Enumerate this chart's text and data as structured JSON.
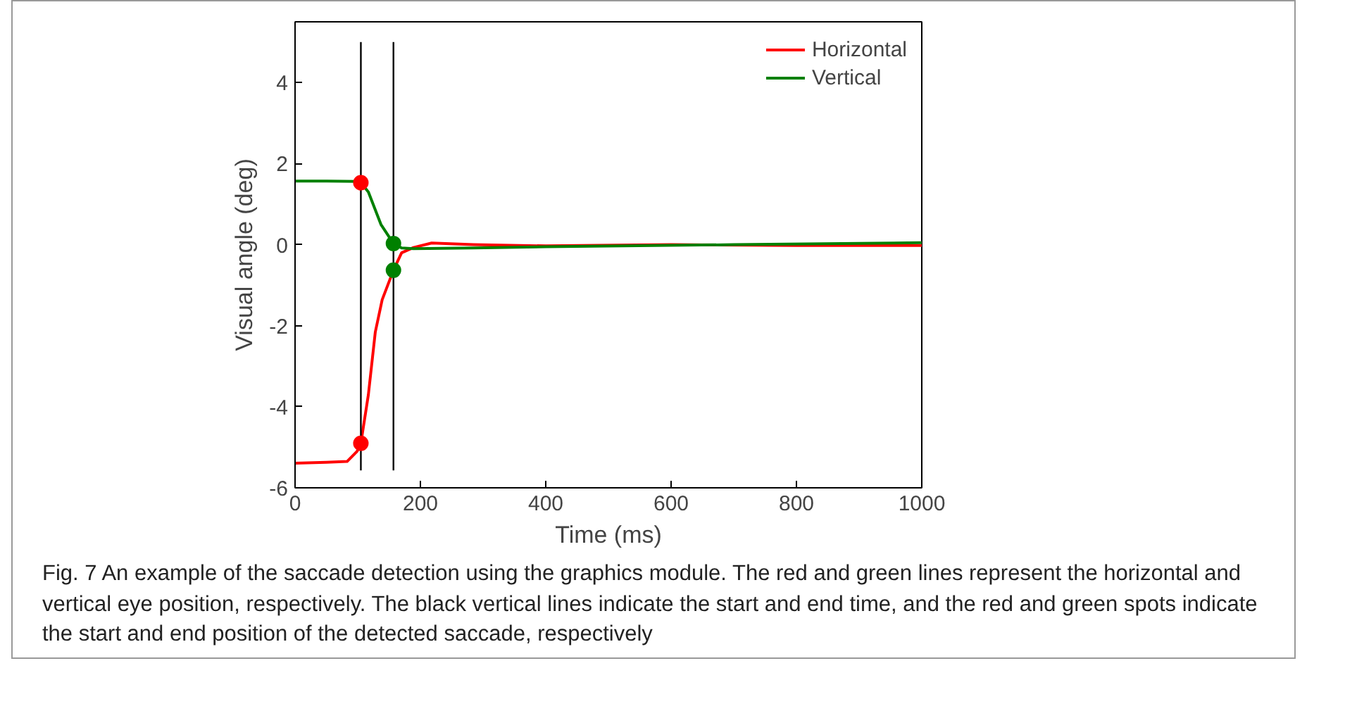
{
  "chart_data": {
    "type": "line",
    "xlabel": "Time (ms)",
    "ylabel": "Visual angle (deg)",
    "xlim": [
      0,
      1000
    ],
    "ylim": [
      -6,
      5.5
    ],
    "xticks": [
      0,
      200,
      400,
      600,
      800,
      1000
    ],
    "yticks": [
      -6,
      -4,
      -2,
      0,
      2,
      4
    ],
    "grid": false,
    "legend": "top right",
    "series": [
      {
        "name": "Horizontal",
        "color": "#ff0000",
        "x": [
          0,
          50,
          83,
          99,
          105,
          117,
          128,
          139,
          157,
          170,
          189,
          218,
          285,
          400,
          600,
          800,
          1000
        ],
        "values": [
          -5.39,
          -5.37,
          -5.35,
          -5.1,
          -4.9,
          -3.7,
          -2.16,
          -1.36,
          -0.63,
          -0.2,
          -0.07,
          0.04,
          0.0,
          -0.03,
          0.0,
          -0.02,
          -0.02
        ]
      },
      {
        "name": "Vertical",
        "color": "#008000",
        "x": [
          0,
          50,
          100,
          105,
          117,
          137,
          157,
          170,
          189,
          285,
          400,
          700,
          1000
        ],
        "values": [
          1.57,
          1.57,
          1.56,
          1.53,
          1.3,
          0.5,
          0.03,
          -0.08,
          -0.1,
          -0.08,
          -0.05,
          0.0,
          0.05
        ]
      },
      {
        "type": "line",
        "color": "#000000",
        "x": [
          105,
          105
        ],
        "values": [
          5.0,
          -5.57
        ]
      },
      {
        "type": "line",
        "color": "#000000",
        "x": [
          157,
          157
        ],
        "values": [
          5.0,
          -5.57
        ]
      },
      {
        "type": "scatter",
        "marker": "circle",
        "color": "#ff0000",
        "x": [
          105,
          105
        ],
        "values": [
          1.53,
          -4.9
        ]
      },
      {
        "type": "scatter",
        "marker": "circle",
        "color": "#008000",
        "x": [
          157,
          157
        ],
        "values": [
          0.03,
          -0.63
        ]
      }
    ],
    "annotations": [
      "Fig. 7  An example of the saccade detection using the graphics module. The red and green lines represent the horizontal and vertical eye position, respectively. The black vertical lines indicate the start and end time, and the red and green spots indicate the start and end position of the detected saccade, respectively"
    ]
  }
}
